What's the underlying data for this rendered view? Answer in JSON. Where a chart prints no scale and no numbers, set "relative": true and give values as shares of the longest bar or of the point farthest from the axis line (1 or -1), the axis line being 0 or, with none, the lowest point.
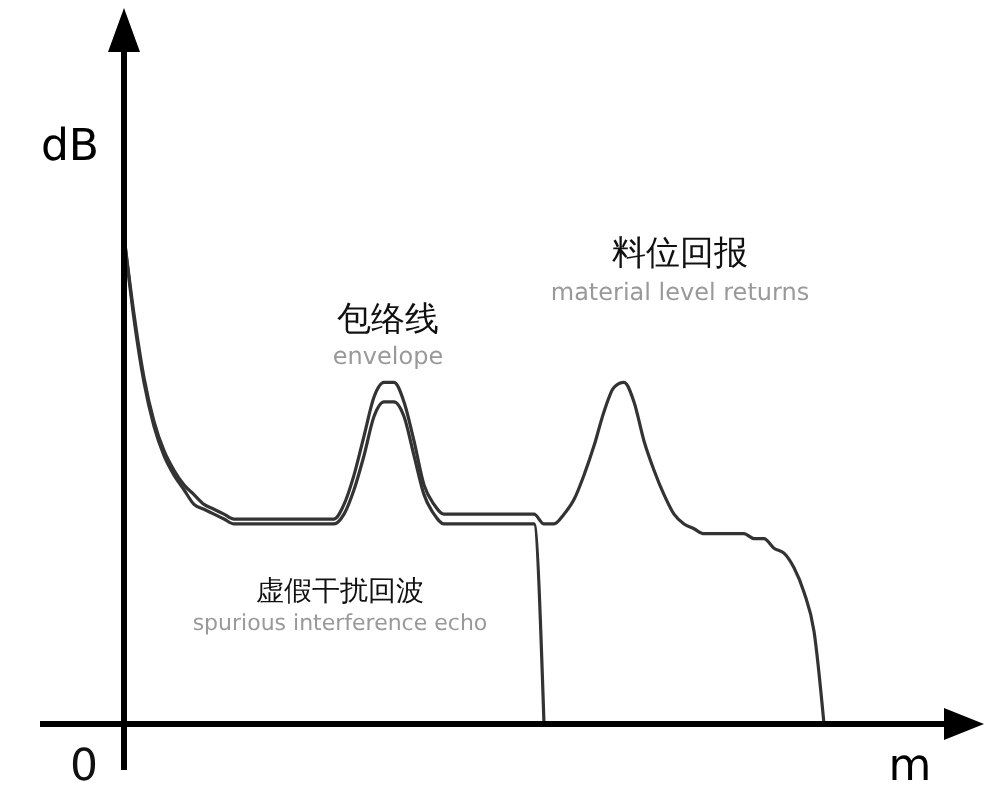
{
  "chart_data": {
    "type": "line",
    "relative": true,
    "xlabel": "m",
    "ylabel": "dB",
    "categories": [
      null,
      null,
      null,
      null,
      null,
      null,
      null,
      null,
      null,
      null,
      null,
      null,
      null,
      null,
      null,
      null,
      null,
      null,
      null,
      null,
      null,
      null,
      null,
      null,
      null,
      null,
      null,
      null,
      null,
      null,
      null,
      null,
      null,
      null,
      null,
      null,
      null,
      null,
      null,
      null,
      null,
      null,
      null,
      null,
      null,
      null,
      null,
      null,
      null,
      null,
      null,
      null,
      null,
      null,
      null,
      null,
      null,
      null,
      null,
      null,
      null,
      null,
      null,
      null,
      null,
      null,
      null,
      null,
      null,
      null,
      null,
      null,
      null,
      null,
      null,
      null,
      null,
      null,
      null,
      null,
      null,
      null,
      null,
      null,
      null,
      null
    ],
    "series": [
      {
        "color": "#333333",
        "values": [
          1.0,
          0.83,
          0.7,
          0.61,
          0.55,
          0.51,
          0.48,
          0.45,
          0.44,
          0.43,
          0.42,
          0.41,
          0.41,
          0.41,
          0.41,
          0.41,
          0.41,
          0.41,
          0.41,
          0.41,
          0.41,
          0.41,
          0.43,
          0.48,
          0.55,
          0.63,
          0.66,
          0.66,
          0.63,
          0.55,
          0.47,
          0.43,
          0.41,
          0.41,
          0.41,
          0.41,
          0.41,
          0.41,
          0.41,
          0.41,
          0.41,
          0.41,
          0,
          null,
          null,
          null,
          null,
          null,
          null,
          null,
          null,
          null,
          null,
          null,
          null,
          null,
          null,
          null,
          null,
          null,
          null,
          null,
          null,
          null,
          null,
          null,
          null,
          null,
          null,
          null,
          null,
          null,
          null,
          null,
          null,
          null,
          null,
          null,
          null,
          null,
          null,
          null,
          null,
          null,
          null,
          null
        ]
      },
      {
        "color": "#333333",
        "values": [
          1.0,
          0.84,
          0.71,
          0.62,
          0.56,
          0.52,
          0.49,
          0.47,
          0.45,
          0.44,
          0.43,
          0.42,
          0.42,
          0.42,
          0.42,
          0.42,
          0.42,
          0.42,
          0.42,
          0.42,
          0.42,
          0.42,
          0.45,
          0.51,
          0.59,
          0.67,
          0.7,
          0.7,
          0.66,
          0.58,
          0.49,
          0.45,
          0.43,
          0.43,
          0.43,
          0.43,
          0.43,
          0.43,
          0.43,
          0.43,
          0.43,
          0.43,
          0.41,
          0.41,
          0.43,
          0.46,
          0.51,
          0.57,
          0.64,
          0.69,
          0.7,
          0.66,
          0.58,
          0.52,
          0.47,
          0.43,
          0.41,
          0.4,
          0.39,
          0.39,
          0.39,
          0.39,
          0.39,
          0.38,
          0.38,
          0.36,
          0.35,
          0.32,
          0.27,
          0.19,
          0,
          null,
          null,
          null,
          null,
          null,
          null,
          null,
          null,
          null,
          null,
          null,
          null,
          null,
          null,
          null
        ]
      }
    ],
    "annotations": [
      "0",
      "包络线",
      "envelope",
      "料位回报",
      "material level returns",
      "虚假干扰回波",
      "spurious interference echo"
    ]
  }
}
